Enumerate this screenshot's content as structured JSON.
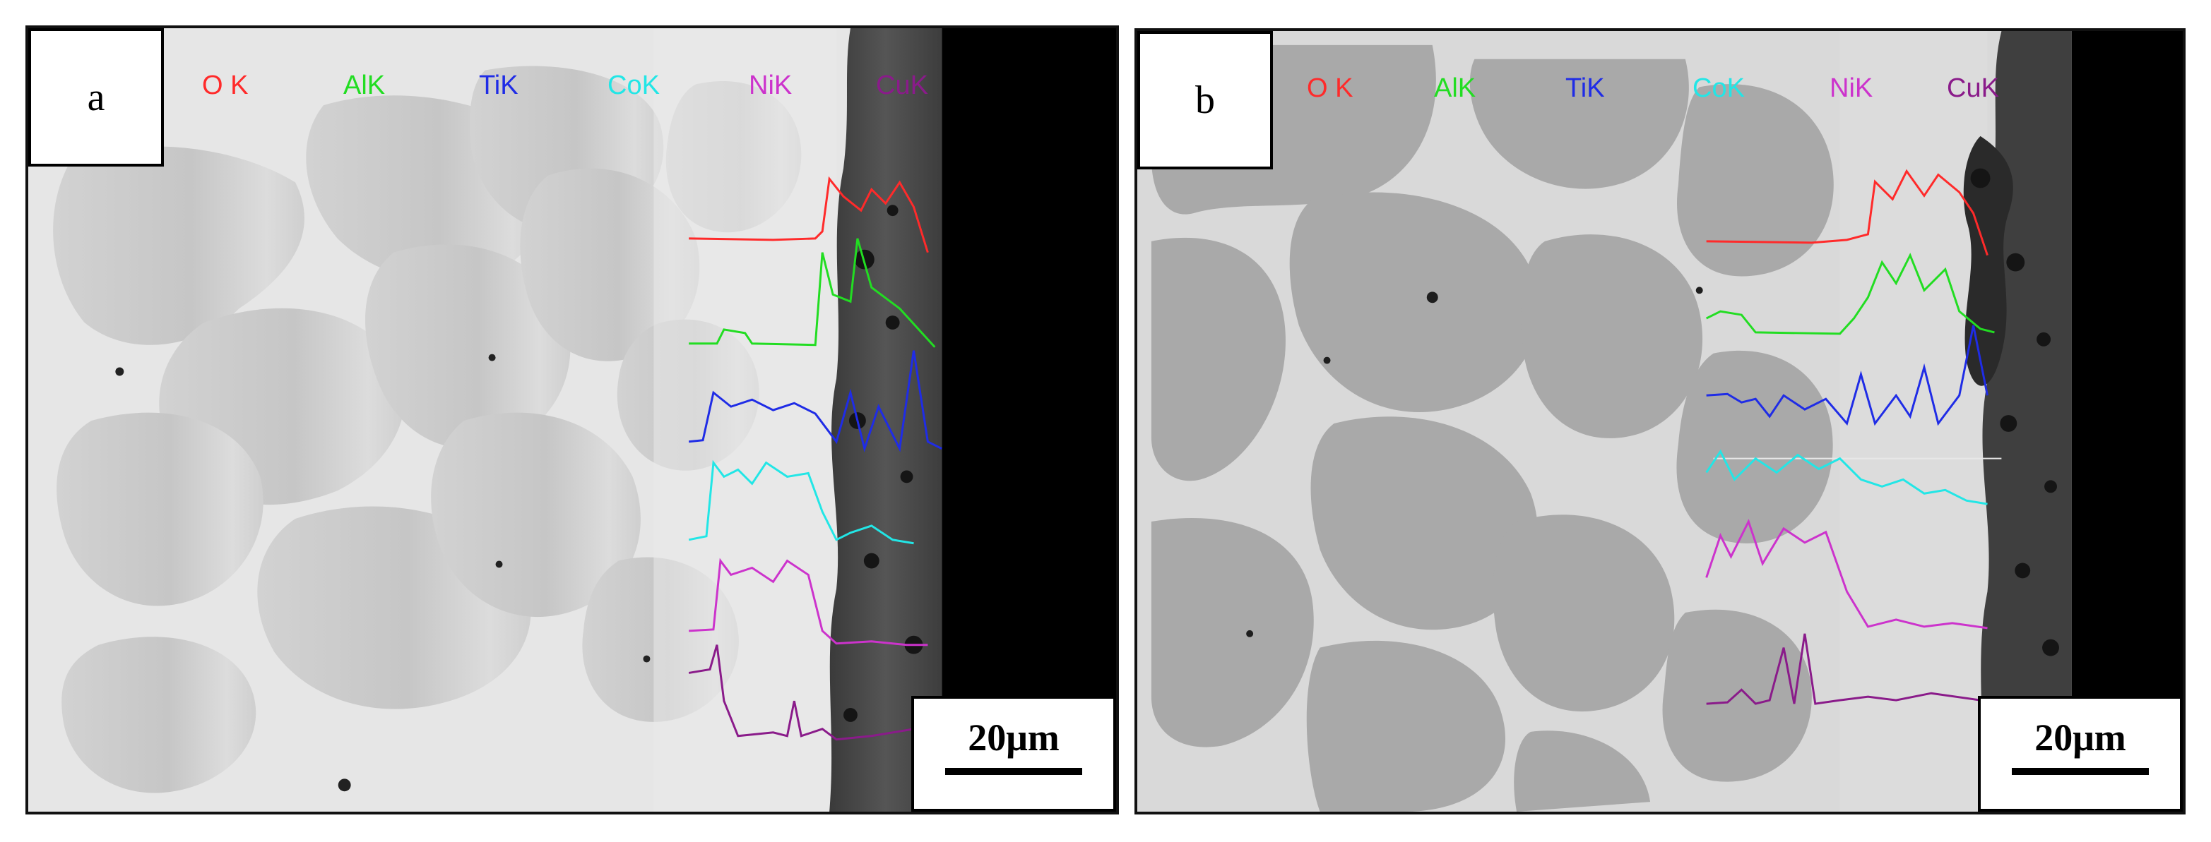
{
  "panels": [
    {
      "id": "a",
      "label": "a",
      "scale_bar": "20μm",
      "elements": [
        "O K",
        "AlK",
        "TiK",
        "CoK",
        "NiK",
        "CuK"
      ]
    },
    {
      "id": "b",
      "label": "b",
      "scale_bar": "20μm",
      "elements": [
        "O K",
        "AlK",
        "TiK",
        "CoK",
        "NiK",
        "CuK"
      ]
    }
  ],
  "element_colors": [
    "#ff2a2a",
    "#22dd22",
    "#1f2ce6",
    "#22e6e6",
    "#cc33cc",
    "#8a1b8a"
  ]
}
